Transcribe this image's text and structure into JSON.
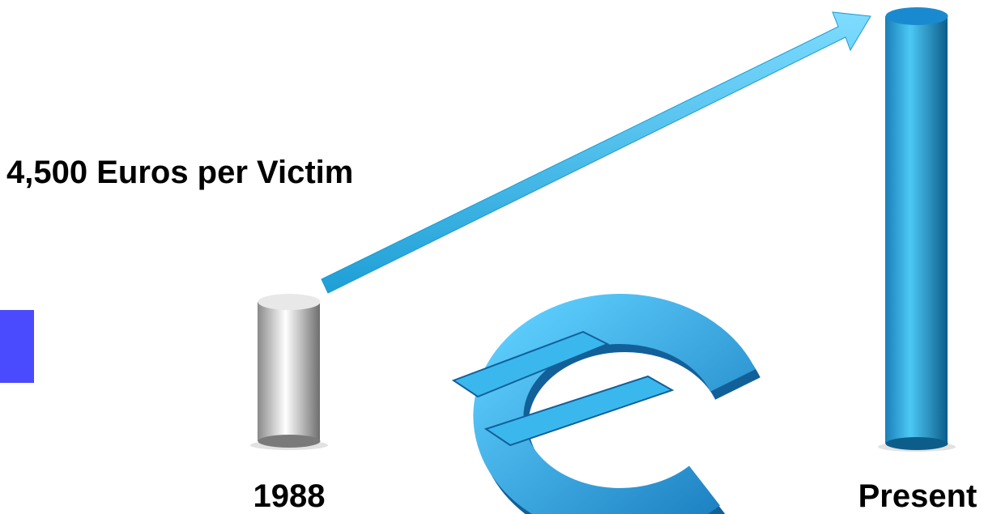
{
  "headline": "4,500 Euros per Victim",
  "columns": [
    {
      "label": "1988"
    },
    {
      "label": "Present"
    }
  ]
}
